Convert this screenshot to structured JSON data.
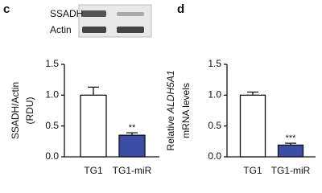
{
  "chart_data": [
    {
      "type": "bar",
      "panel": "c",
      "blot_labels": [
        "SSADH",
        "Actin"
      ],
      "ylabel": [
        [
          {
            "text": "SSADH/Actin"
          }
        ],
        [
          {
            "text": "(RDU)"
          }
        ]
      ],
      "categories": [
        "TG1",
        "TG1-miR"
      ],
      "values": [
        1.0,
        0.35
      ],
      "errors": [
        0.13,
        0.04
      ],
      "colors": [
        "#ffffff",
        "#3b4da5"
      ],
      "significance": [
        null,
        "**"
      ],
      "ylim": [
        0,
        1.5
      ],
      "yticks": [
        {
          "value": 0,
          "label": "0.0"
        },
        {
          "value": 0.5,
          "label": "0.5"
        },
        {
          "value": 1,
          "label": "1.0"
        },
        {
          "value": 1.5,
          "label": "1.5"
        }
      ]
    },
    {
      "type": "bar",
      "panel": "d",
      "ylabel": [
        [
          {
            "text": "Relative "
          },
          {
            "text": "ALDH5A1",
            "italic": true
          }
        ],
        [
          {
            "text": "mRNA levels"
          }
        ]
      ],
      "categories": [
        "TG1",
        "TG1-miR"
      ],
      "values": [
        1.0,
        0.19
      ],
      "errors": [
        0.05,
        0.03
      ],
      "colors": [
        "#ffffff",
        "#3b4da5"
      ],
      "significance": [
        null,
        "***"
      ],
      "ylim": [
        0,
        1.5
      ],
      "yticks": [
        {
          "value": 0,
          "label": "0.0"
        },
        {
          "value": 0.5,
          "label": "0.5"
        },
        {
          "value": 1,
          "label": "1.0"
        },
        {
          "value": 1.5,
          "label": "1.5"
        }
      ]
    }
  ]
}
